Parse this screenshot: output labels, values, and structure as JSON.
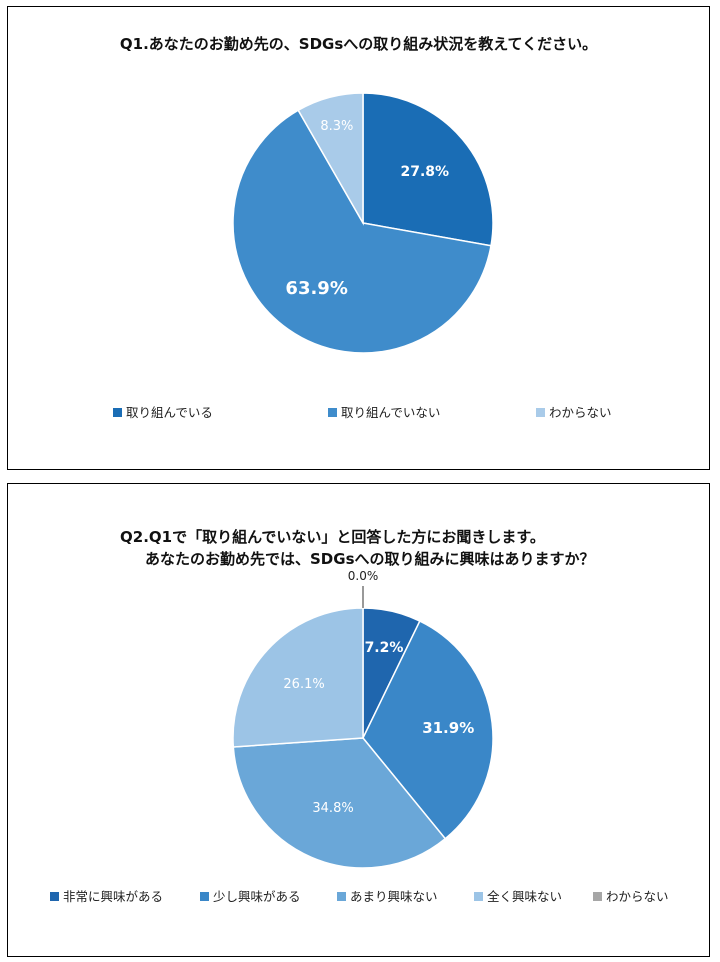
{
  "charts": [
    {
      "title": "Q1.あなたのお勤め先の、SDGsへの取り組み状況を教えてください。",
      "chart_data": {
        "type": "pie",
        "categories": [
          "取り組んでいる",
          "取り組んでいない",
          "わからない"
        ],
        "values": [
          27.8,
          63.9,
          8.3
        ],
        "labels": [
          "27.8%",
          "63.9%",
          "8.3%"
        ],
        "colors": [
          "#1a6db5",
          "#3f8ccb",
          "#a9cbe9"
        ],
        "legend_position": "bottom"
      }
    },
    {
      "title_line1": "Q2.Q1で「取り組んでいない」と回答した方にお聞きします。",
      "title_line2": "あなたのお勤め先では、SDGsへの取り組みに興味はありますか？",
      "chart_data": {
        "type": "pie",
        "categories": [
          "非常に興味がある",
          "少し興味がある",
          "あまり興味ない",
          "全く興味ない",
          "わからない"
        ],
        "values": [
          7.2,
          31.9,
          34.8,
          26.1,
          0.0
        ],
        "labels": [
          "7.2%",
          "31.9%",
          "34.8%",
          "26.1%",
          "0.0%"
        ],
        "colors": [
          "#1f66ae",
          "#3a87c8",
          "#6aa7d8",
          "#9cc4e6",
          "#a6a6a6"
        ],
        "legend_position": "bottom"
      }
    }
  ]
}
